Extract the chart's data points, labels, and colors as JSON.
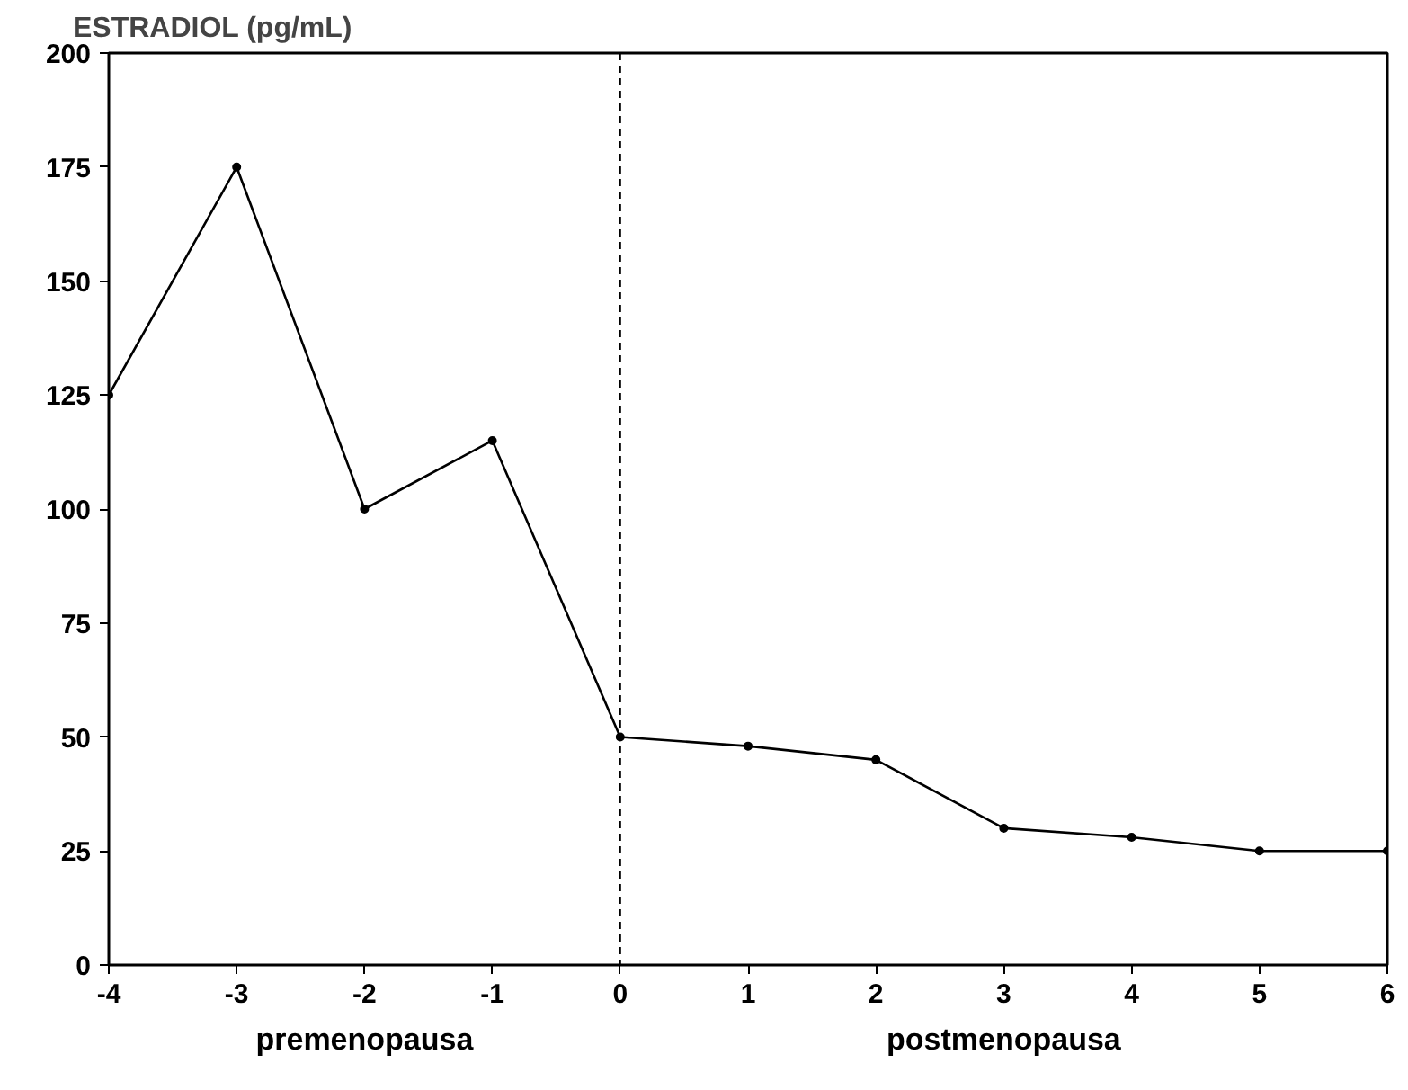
{
  "chart_data": {
    "type": "line",
    "ylabel": "ESTRADIOL (pg/mL)",
    "x": [
      -4,
      -3,
      -2,
      -1,
      0,
      1,
      2,
      3,
      4,
      5,
      6
    ],
    "series": [
      {
        "color": "#000000",
        "values": [
          125,
          175,
          100,
          115,
          50,
          48,
          45,
          30,
          28,
          25,
          25
        ]
      }
    ],
    "xlim": [
      -4,
      6
    ],
    "xticks": [
      -4,
      -3,
      -2,
      -1,
      0,
      1,
      2,
      3,
      4,
      5,
      6
    ],
    "ylim": [
      0,
      200
    ],
    "yticks": [
      0,
      25,
      50,
      75,
      100,
      125,
      150,
      175,
      200
    ],
    "grid": false,
    "marker": "circle",
    "line_style": "solid",
    "ref_lines": [
      {
        "axis": "x",
        "value": 0,
        "color": "#000000",
        "line_style": "dashed"
      }
    ],
    "annotations": [
      "premenopausa",
      "postmenopausa"
    ]
  }
}
